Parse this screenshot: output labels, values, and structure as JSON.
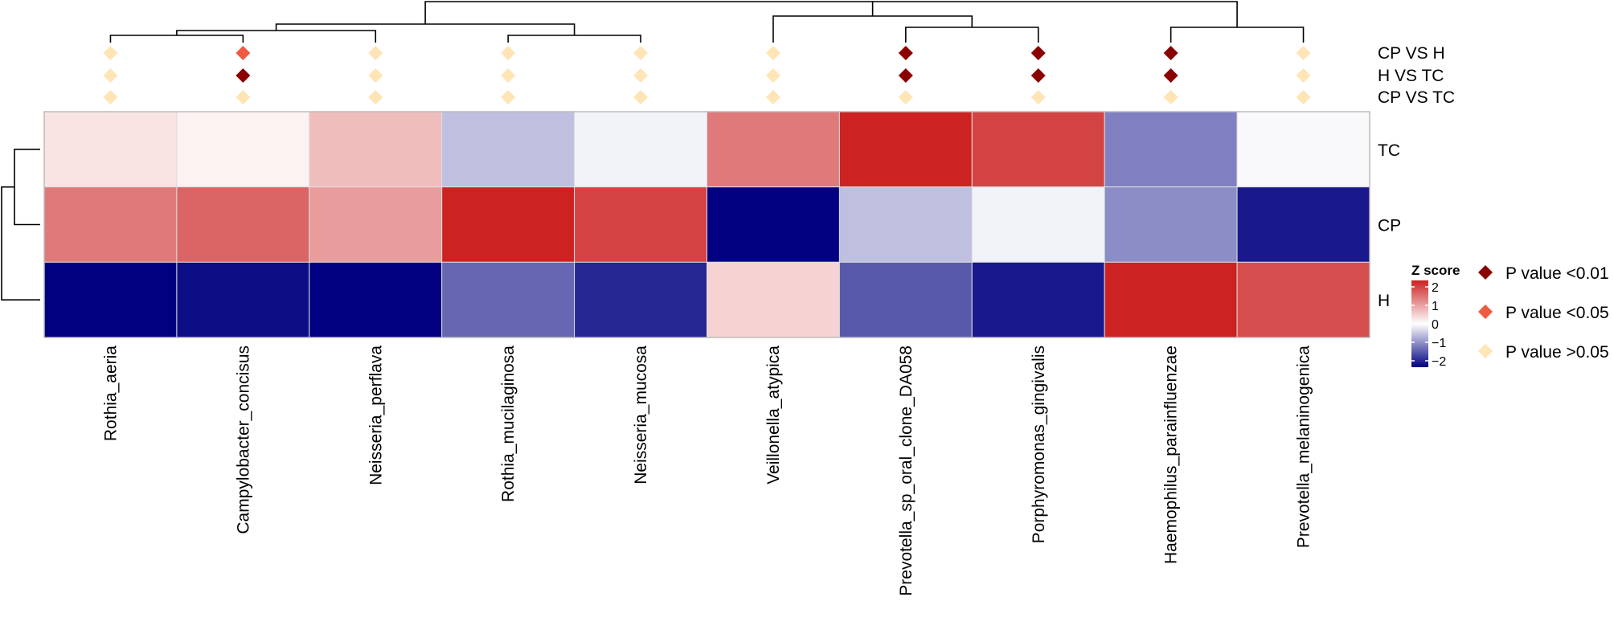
{
  "chart_data": {
    "type": "heatmap",
    "title": "",
    "columns": [
      "Rothia_aeria",
      "Campylobacter_concisus",
      "Neisseria_perflava",
      "Rothia_mucilaginosa",
      "Neisseria_mucosa",
      "Veillonella_atypica",
      "Prevotella_sp_oral_clone_DA058",
      "Porphyromonas_gingivalis",
      "Haemophilus_parainfluenzae",
      "Prevotella_melaninogenica"
    ],
    "rows": [
      "TC",
      "CP",
      "H"
    ],
    "values": [
      [
        0.25,
        0.12,
        0.6,
        -0.5,
        -0.1,
        1.2,
        2.0,
        1.7,
        -1.0,
        -0.05
      ],
      [
        1.2,
        1.4,
        0.9,
        2.0,
        1.7,
        -2.0,
        -0.5,
        -0.1,
        -0.9,
        -1.8
      ],
      [
        -2.0,
        -1.9,
        -2.0,
        -1.2,
        -1.7,
        0.4,
        -1.3,
        -1.8,
        2.0,
        1.6
      ]
    ],
    "comparisons": [
      "CP VS H",
      "H VS TC",
      "CP VS TC"
    ],
    "significance": [
      [
        ">0.05",
        "<0.05",
        ">0.05",
        ">0.05",
        ">0.05",
        ">0.05",
        "<0.01",
        "<0.01",
        "<0.01",
        ">0.05"
      ],
      [
        ">0.05",
        "<0.01",
        ">0.05",
        ">0.05",
        ">0.05",
        ">0.05",
        "<0.01",
        "<0.01",
        "<0.01",
        ">0.05"
      ],
      [
        ">0.05",
        ">0.05",
        ">0.05",
        ">0.05",
        ">0.05",
        ">0.05",
        ">0.05",
        ">0.05",
        ">0.05",
        ">0.05"
      ]
    ],
    "colorbar": {
      "title": "Z score",
      "ticks": [
        "2",
        "1",
        "0",
        "−1",
        "−2"
      ],
      "range": [
        -2,
        2
      ],
      "colors": [
        "#000080",
        "#ffffff",
        "#cc2222"
      ]
    },
    "legend": {
      "position": "right",
      "entries": [
        {
          "label": "P value <0.01",
          "color": "#8b0000"
        },
        {
          "label": "P value <0.05",
          "color": "#f05a40"
        },
        {
          "label": "P value >0.05",
          "color": "#ffe4b5"
        }
      ]
    }
  }
}
